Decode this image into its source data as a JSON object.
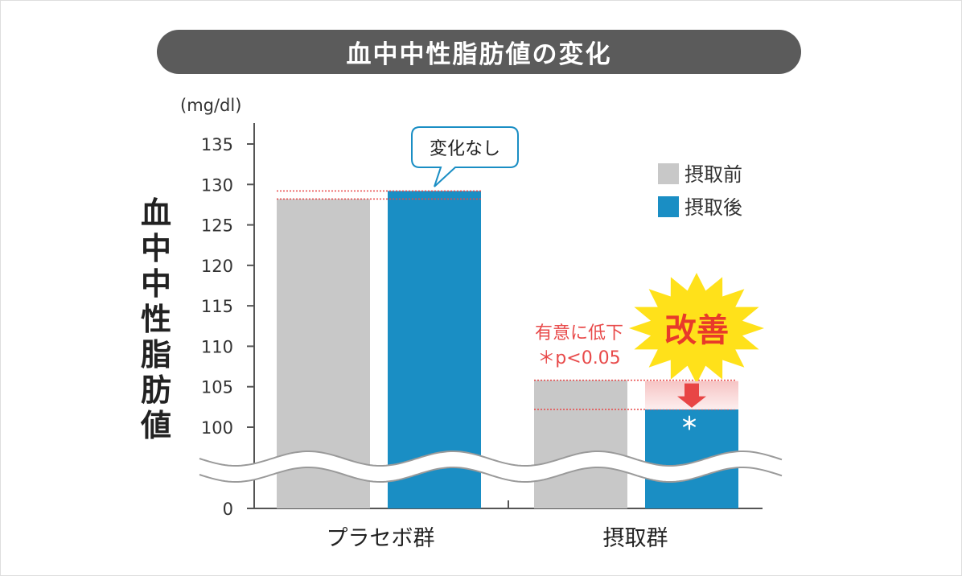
{
  "chart_data": {
    "type": "bar",
    "title": "血中中性脂肪値の変化",
    "ylabel": "血中中性脂肪値",
    "unit": "(mg/dl)",
    "categories": [
      "プラセボ群",
      "摂取群"
    ],
    "series": [
      {
        "name": "摂取前",
        "color": "#c8c8c8",
        "values": [
          128.2,
          105.8
        ]
      },
      {
        "name": "摂取後",
        "color": "#1a8ec4",
        "values": [
          129.2,
          102.2
        ]
      }
    ],
    "y_ticks": [
      "135",
      "130",
      "125",
      "120",
      "115",
      "110",
      "105",
      "100",
      "0"
    ],
    "ylim": [
      100,
      135
    ],
    "axis_break": true,
    "legend_position": "top-right",
    "annotations": {
      "placebo_bubble": "変化なし",
      "significance_line1": "有意に低下",
      "significance_line2": "＊p<0.05",
      "improvement_burst": "改善",
      "asterisk": "＊"
    }
  }
}
